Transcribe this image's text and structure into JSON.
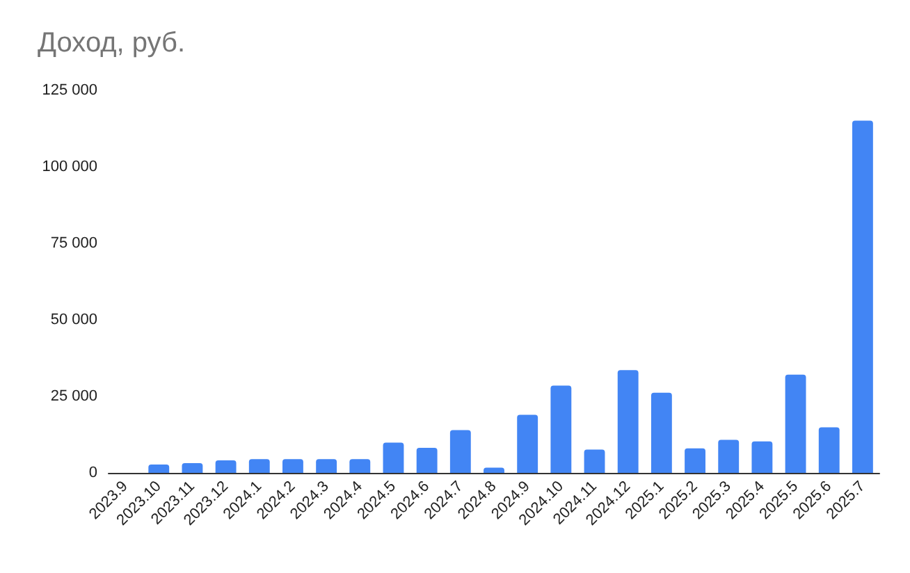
{
  "chart_data": {
    "type": "bar",
    "title": "Доход, руб.",
    "categories": [
      "2023.9",
      "2023.10",
      "2023.11",
      "2023.12",
      "2024.1",
      "2024.2",
      "2024.3",
      "2024.4",
      "2024.5",
      "2024.6",
      "2024.7",
      "2024.8",
      "2024.9",
      "2024.10",
      "2024.11",
      "2024.12",
      "2025.1",
      "2025.2",
      "2025.3",
      "2025.4",
      "2025.5",
      "2025.6",
      "2025.7"
    ],
    "values": [
      0,
      2700,
      3200,
      4100,
      4500,
      4500,
      4500,
      4500,
      9900,
      8200,
      14000,
      1700,
      19000,
      28500,
      7600,
      33600,
      26200,
      8000,
      10800,
      10300,
      32100,
      14900,
      115100
    ],
    "color": "#4285f4",
    "ylim": [
      0,
      125000
    ],
    "yticks": [
      {
        "value": 0,
        "label": "0"
      },
      {
        "value": 25000,
        "label": "25 000"
      },
      {
        "value": 50000,
        "label": "50 000"
      },
      {
        "value": 75000,
        "label": "75 000"
      },
      {
        "value": 100000,
        "label": "100 000"
      },
      {
        "value": 125000,
        "label": "125 000"
      }
    ],
    "grid": false
  }
}
